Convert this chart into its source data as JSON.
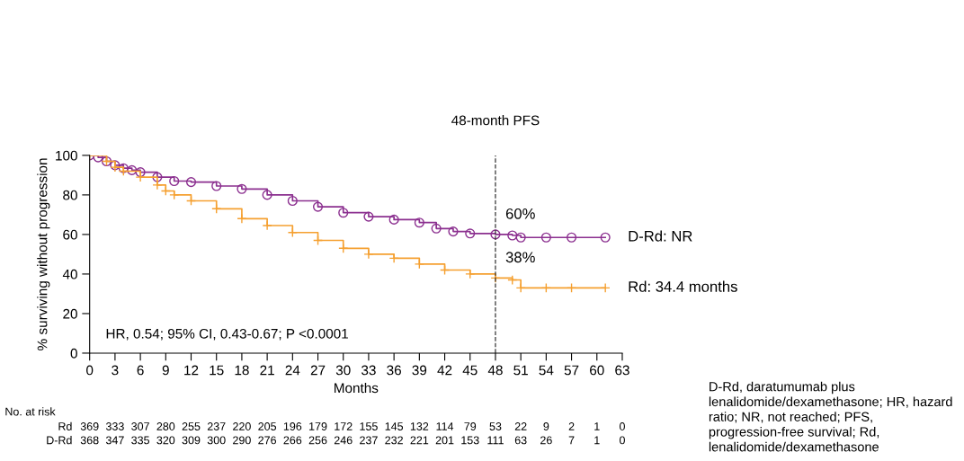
{
  "chart_data": {
    "type": "step",
    "xlabel": "Months",
    "ylabel": "% surviving without progression",
    "xlim": [
      0,
      63
    ],
    "xticks": [
      0,
      3,
      6,
      9,
      12,
      15,
      18,
      21,
      24,
      27,
      30,
      33,
      36,
      39,
      42,
      45,
      48,
      51,
      54,
      57,
      60,
      63
    ],
    "ylim": [
      0,
      100
    ],
    "yticks": [
      0,
      20,
      40,
      60,
      80,
      100
    ],
    "grid": false,
    "legend": false,
    "line_style": "solid",
    "series": [
      {
        "name": "D-Rd: NR",
        "color": "#8b2f8f",
        "marker": "circle",
        "x": [
          0,
          1,
          2,
          3,
          4,
          5,
          6,
          8,
          10,
          12,
          15,
          18,
          21,
          24,
          27,
          30,
          33,
          36,
          39,
          41,
          43,
          45,
          48,
          50,
          51,
          54,
          57,
          61
        ],
        "values": [
          100,
          99,
          97,
          95,
          93.5,
          92.5,
          91.5,
          89,
          87,
          86.5,
          84.5,
          83,
          80,
          77,
          74,
          71,
          69,
          67.5,
          66,
          63,
          61.5,
          60.5,
          60,
          59.5,
          58.5,
          58.5,
          58.5,
          58.5
        ]
      },
      {
        "name": "Rd: 34.4 months",
        "color": "#f5a030",
        "marker": "cross",
        "x": [
          0,
          2,
          3,
          4,
          6,
          8,
          9,
          10,
          12,
          15,
          18,
          21,
          24,
          27,
          30,
          33,
          36,
          39,
          42,
          45,
          48,
          50,
          51,
          54,
          57,
          61
        ],
        "values": [
          100,
          97,
          94,
          92,
          89,
          85,
          82,
          80,
          77,
          73,
          68,
          64.5,
          61,
          57,
          53,
          50,
          48,
          45,
          42,
          40,
          38,
          37,
          33,
          33,
          33,
          33
        ]
      }
    ],
    "ref_lines": [
      {
        "axis": "x",
        "value": 48,
        "label": "48-month PFS",
        "color": "#333333",
        "line_style": "dashed"
      }
    ],
    "annotations": [
      {
        "text": "60%",
        "x": 48,
        "y": 60
      },
      {
        "text": "38%",
        "x": 48,
        "y": 38
      },
      "HR, 0.54; 95% CI, 0.43-0.67; P <0.0001",
      "No. at risk",
      "Rd 369 333 307 280 255 237 220 205 196 179 172 155 145 132 114 79 53 22 9 2 1 0",
      "D-Rd 368 347 335 320 309 300 290 276 266 256 246 237 232 221 201 153 111 63 26 7 1 0",
      "D-Rd, daratumumab plus lenalidomide/dexamethasone; HR, hazard ratio; NR, not reached; PFS, progression-free survival; Rd, lenalidomide/dexamethasone"
    ]
  }
}
